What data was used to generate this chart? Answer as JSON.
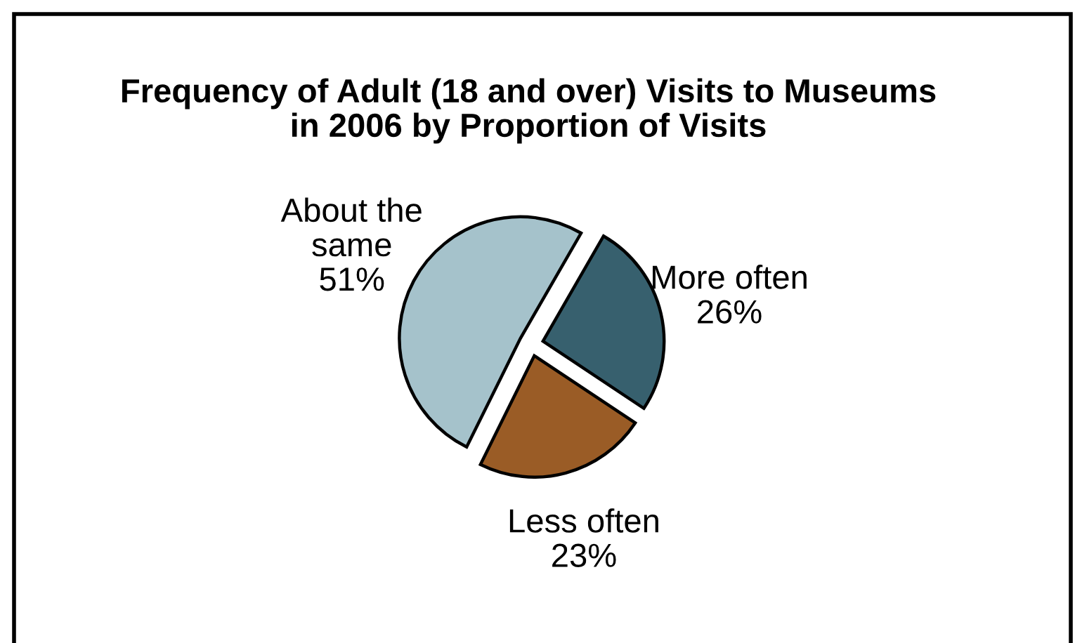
{
  "chart_data": {
    "type": "pie",
    "title": "Frequency of Adult (18 and over) Visits to Museums in 2006 by Proportion of Visits",
    "categories": [
      "About the same",
      "More often",
      "Less often"
    ],
    "values": [
      51,
      26,
      23
    ],
    "value_labels": [
      "51%",
      "26%",
      "23%"
    ],
    "colors": [
      "#a5c2cb",
      "#37606e",
      "#9a5c26"
    ]
  }
}
